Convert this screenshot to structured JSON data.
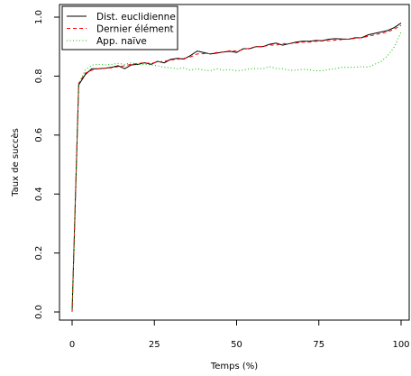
{
  "chart_data": {
    "type": "line",
    "xlabel": "Temps (%)",
    "ylabel": "Taux de succès",
    "xlim": [
      0,
      100
    ],
    "ylim": [
      0,
      1
    ],
    "x_ticks": [
      "0",
      "25",
      "50",
      "75",
      "100"
    ],
    "y_ticks": [
      "0.0",
      "0.2",
      "0.4",
      "0.6",
      "0.8",
      "1.0"
    ],
    "grid": false,
    "legend_position": "top-left",
    "series": [
      {
        "name": "Dist. euclidienne",
        "color": "#000000",
        "dash": "solid",
        "x": [
          0,
          2,
          4,
          6,
          8,
          10,
          12,
          14,
          16,
          18,
          20,
          22,
          24,
          26,
          28,
          30,
          32,
          34,
          36,
          38,
          40,
          42,
          44,
          46,
          48,
          50,
          52,
          54,
          56,
          58,
          60,
          62,
          64,
          66,
          68,
          70,
          72,
          74,
          76,
          78,
          80,
          82,
          84,
          86,
          88,
          90,
          92,
          94,
          96,
          98,
          100
        ],
        "y": [
          0.0,
          0.77,
          0.805,
          0.825,
          0.825,
          0.827,
          0.83,
          0.835,
          0.825,
          0.838,
          0.84,
          0.845,
          0.84,
          0.85,
          0.845,
          0.857,
          0.86,
          0.858,
          0.87,
          0.885,
          0.88,
          0.875,
          0.878,
          0.882,
          0.884,
          0.88,
          0.893,
          0.893,
          0.9,
          0.9,
          0.908,
          0.912,
          0.905,
          0.91,
          0.915,
          0.918,
          0.918,
          0.921,
          0.92,
          0.925,
          0.927,
          0.926,
          0.925,
          0.93,
          0.93,
          0.94,
          0.945,
          0.95,
          0.955,
          0.965,
          0.98
        ]
      },
      {
        "name": "Dernier élément",
        "color": "#ff0000",
        "dash": "dashed",
        "x": [
          0,
          2,
          4,
          6,
          8,
          10,
          12,
          14,
          16,
          18,
          20,
          22,
          24,
          26,
          28,
          30,
          32,
          34,
          36,
          38,
          40,
          42,
          44,
          46,
          48,
          50,
          52,
          54,
          56,
          58,
          60,
          62,
          64,
          66,
          68,
          70,
          72,
          74,
          76,
          78,
          80,
          82,
          84,
          86,
          88,
          90,
          92,
          94,
          96,
          98,
          100
        ],
        "y": [
          0.0,
          0.775,
          0.81,
          0.82,
          0.825,
          0.827,
          0.828,
          0.832,
          0.835,
          0.84,
          0.843,
          0.845,
          0.843,
          0.848,
          0.85,
          0.855,
          0.857,
          0.86,
          0.865,
          0.875,
          0.876,
          0.876,
          0.88,
          0.882,
          0.886,
          0.885,
          0.89,
          0.895,
          0.9,
          0.9,
          0.905,
          0.905,
          0.91,
          0.91,
          0.912,
          0.915,
          0.915,
          0.918,
          0.919,
          0.92,
          0.922,
          0.924,
          0.925,
          0.928,
          0.93,
          0.935,
          0.94,
          0.945,
          0.95,
          0.96,
          0.972
        ]
      },
      {
        "name": "App. naïve",
        "color": "#00bb00",
        "dash": "dotted",
        "x": [
          0,
          2,
          4,
          6,
          8,
          10,
          12,
          14,
          16,
          18,
          20,
          22,
          24,
          26,
          28,
          30,
          32,
          34,
          36,
          38,
          40,
          42,
          44,
          46,
          48,
          50,
          52,
          54,
          56,
          58,
          60,
          62,
          64,
          66,
          68,
          70,
          72,
          74,
          76,
          78,
          80,
          82,
          84,
          86,
          88,
          90,
          92,
          94,
          96,
          98,
          100
        ],
        "y": [
          0.0,
          0.775,
          0.82,
          0.837,
          0.84,
          0.838,
          0.84,
          0.843,
          0.84,
          0.845,
          0.84,
          0.84,
          0.838,
          0.835,
          0.83,
          0.828,
          0.825,
          0.828,
          0.82,
          0.825,
          0.82,
          0.818,
          0.825,
          0.82,
          0.822,
          0.818,
          0.82,
          0.825,
          0.826,
          0.825,
          0.832,
          0.826,
          0.825,
          0.82,
          0.82,
          0.823,
          0.822,
          0.818,
          0.818,
          0.823,
          0.825,
          0.83,
          0.83,
          0.83,
          0.832,
          0.83,
          0.84,
          0.85,
          0.87,
          0.9,
          0.95
        ]
      }
    ]
  }
}
